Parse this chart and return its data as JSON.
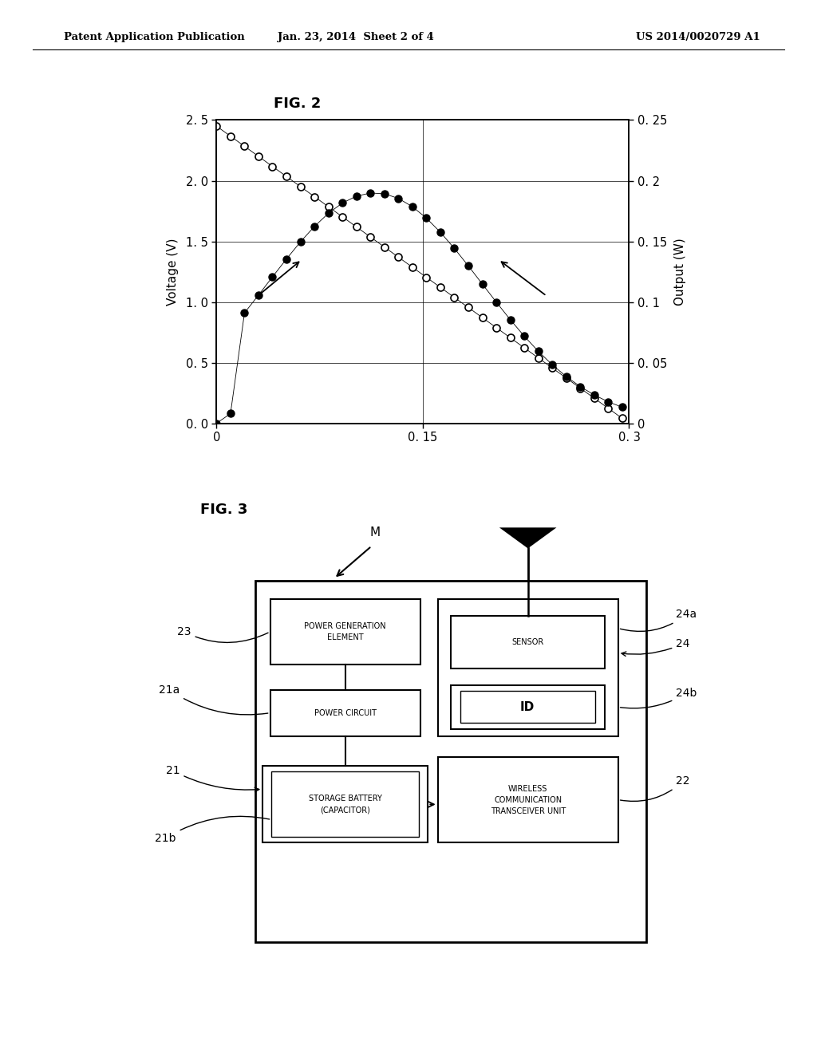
{
  "header_left": "Patent Application Publication",
  "header_mid": "Jan. 23, 2014  Sheet 2 of 4",
  "header_right": "US 2014/0020729 A1",
  "fig2_title": "FIG. 2",
  "fig3_title": "FIG. 3",
  "fig2_ylabel_left": "Voltage (V)",
  "fig2_ylabel_right": "Output (W)",
  "fig2_xtick_labels": [
    "0",
    "0. 15",
    "0. 3"
  ],
  "fig2_ytick_labels_left": [
    "0. 0",
    "0. 5",
    "1. 0",
    "1. 5",
    "2. 0",
    "2. 5"
  ],
  "fig2_ytick_labels_right": [
    "0",
    "0. 05",
    "0. 1",
    "0. 15",
    "0. 2",
    "0. 25"
  ],
  "background_color": "#ffffff"
}
